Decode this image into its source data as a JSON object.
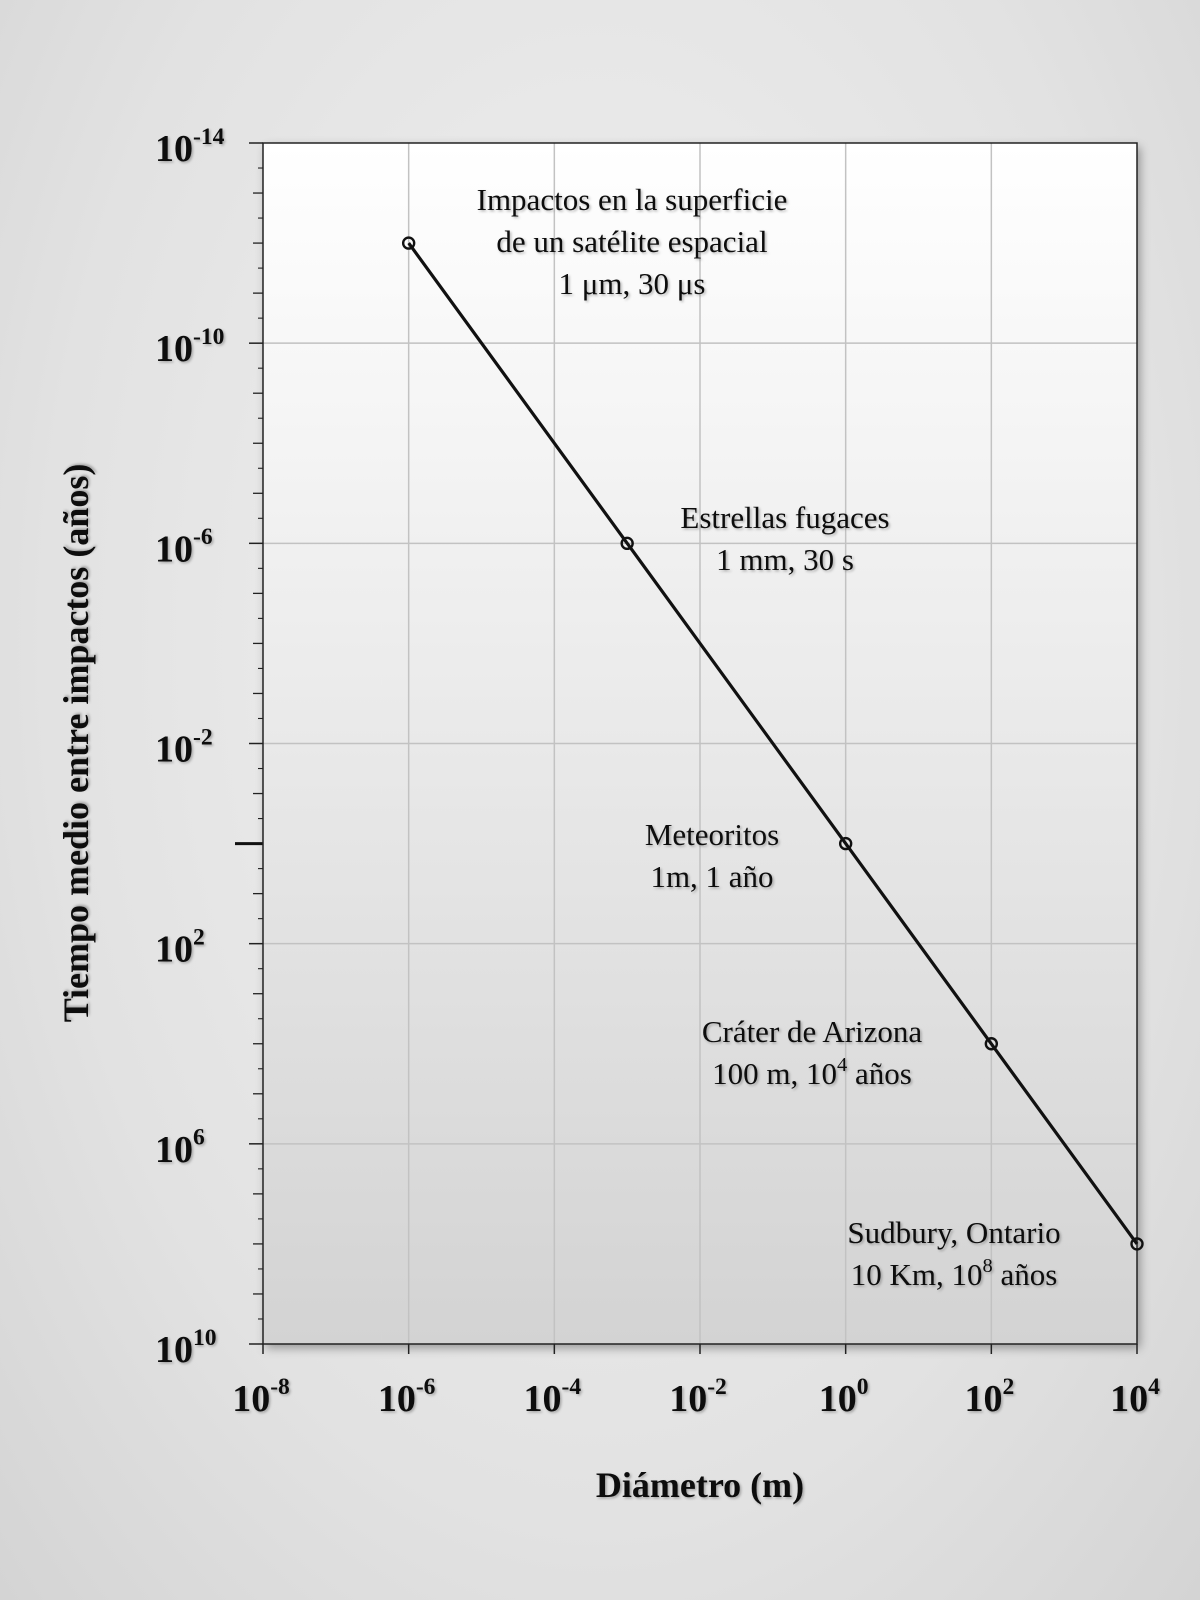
{
  "chart_data": {
    "type": "line",
    "xlabel": "Diámetro (m)",
    "ylabel": "Tiempo medio entre impactos (años)",
    "x_scale": "log",
    "y_scale": "log",
    "y_inverted": true,
    "xlim": [
      1e-08,
      10000.0
    ],
    "ylim": [
      1e-14,
      10000000000.0
    ],
    "grid": true,
    "x_ticks": [
      {
        "base": "10",
        "exp": "-8"
      },
      {
        "base": "10",
        "exp": "-6"
      },
      {
        "base": "10",
        "exp": "-4"
      },
      {
        "base": "10",
        "exp": "-2"
      },
      {
        "base": "10",
        "exp": "0"
      },
      {
        "base": "10",
        "exp": "2"
      },
      {
        "base": "10",
        "exp": "4"
      }
    ],
    "y_ticks": [
      {
        "base": "10",
        "exp": "-14"
      },
      {
        "base": "10",
        "exp": "-10"
      },
      {
        "base": "10",
        "exp": "-6"
      },
      {
        "base": "10",
        "exp": "-2"
      },
      {
        "base": "10",
        "exp": "2"
      },
      {
        "base": "10",
        "exp": "6"
      },
      {
        "base": "10",
        "exp": "10"
      }
    ],
    "series": [
      {
        "points": [
          {
            "x": 1e-06,
            "y": 1e-12
          },
          {
            "x": 0.001,
            "y": 1e-06
          },
          {
            "x": 1,
            "y": 1
          },
          {
            "x": 100,
            "y": 10000.0
          },
          {
            "x": 10000.0,
            "y": 100000000.0
          }
        ]
      }
    ],
    "annotations": [
      {
        "lines": [
          {
            "text": "Impactos en la superficie"
          },
          {
            "text": "de un satélite espacial"
          },
          {
            "text": "1 μm, 30 μs"
          }
        ]
      },
      {
        "lines": [
          {
            "text": "Estrellas fugaces"
          },
          {
            "text": "1 mm, 30 s"
          }
        ]
      },
      {
        "lines": [
          {
            "text": "Meteoritos"
          },
          {
            "text": "1m, 1 año"
          }
        ]
      },
      {
        "lines": [
          {
            "text": "Cráter de Arizona"
          },
          {
            "text": "100 m, 10",
            "sup": "4",
            "after": " años"
          }
        ]
      },
      {
        "lines": [
          {
            "text": "Sudbury, Ontario"
          },
          {
            "text": "10 Km, 10",
            "sup": "8",
            "after": " años"
          }
        ]
      }
    ]
  }
}
